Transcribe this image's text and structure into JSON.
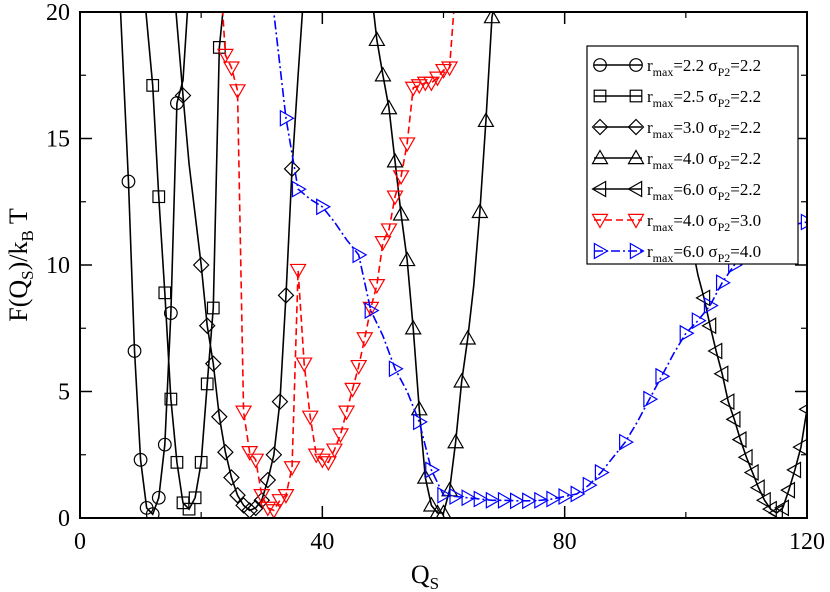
{
  "chart_data": {
    "type": "line",
    "xlabel": {
      "main": "Q",
      "sub": "S"
    },
    "ylabel": {
      "pre": "F(Q",
      "sub1": "S",
      "mid": ")/k",
      "sub2": "B",
      "post": " T"
    },
    "xlim": [
      0,
      120
    ],
    "ylim": [
      0,
      20
    ],
    "xticks": [
      0,
      40,
      80,
      120
    ],
    "yticks": [
      0,
      5,
      10,
      15,
      20
    ],
    "legend_position": "top-right",
    "grid": false,
    "series": [
      {
        "legend": {
          "r": "2.2",
          "s": "2.2"
        },
        "color": "#000000",
        "dash": "none",
        "marker": "circle",
        "x": [
          6.5,
          8,
          9,
          10,
          11,
          12,
          13,
          14,
          15,
          16,
          17,
          18
        ],
        "y": [
          21,
          13.3,
          6.6,
          2.3,
          0.4,
          0.15,
          0.8,
          2.9,
          8.1,
          16.4,
          17.3,
          21
        ],
        "markers": [
          1,
          1,
          1,
          1,
          1,
          1,
          1,
          1,
          1,
          1,
          0,
          0
        ]
      },
      {
        "legend": {
          "r": "2.5",
          "s": "2.2"
        },
        "color": "#000000",
        "dash": "none",
        "marker": "square",
        "x": [
          10.5,
          12,
          13,
          14,
          15,
          16,
          17,
          18,
          19,
          20,
          21,
          22,
          23,
          24
        ],
        "y": [
          21,
          17.1,
          12.7,
          8.9,
          4.7,
          2.2,
          0.6,
          0.35,
          0.8,
          2.2,
          5.3,
          8.3,
          18.6,
          21
        ],
        "markers": [
          0,
          1,
          1,
          1,
          1,
          1,
          1,
          1,
          1,
          1,
          1,
          1,
          1,
          0
        ]
      },
      {
        "legend": {
          "r": "3.0",
          "s": "2.2"
        },
        "color": "#000000",
        "dash": "none",
        "marker": "diamond",
        "x": [
          15.5,
          17,
          18,
          19,
          20,
          21,
          22,
          23,
          24,
          25,
          26,
          27,
          28,
          29,
          30,
          31,
          32,
          33,
          34,
          35,
          36,
          37
        ],
        "y": [
          21,
          16.7,
          14,
          12,
          10,
          7.6,
          6.1,
          4,
          2.6,
          1.6,
          0.9,
          0.5,
          0.3,
          0.4,
          0.7,
          1.5,
          2.5,
          4.6,
          8.8,
          13.8,
          17.5,
          21
        ],
        "markers": [
          0,
          1,
          0,
          0,
          1,
          1,
          1,
          1,
          1,
          1,
          1,
          1,
          1,
          1,
          1,
          1,
          1,
          1,
          1,
          1,
          0,
          0
        ]
      },
      {
        "legend": {
          "r": "4.0",
          "s": "2.2"
        },
        "color": "#000000",
        "dash": "none",
        "marker": "triangle-up",
        "x": [
          48,
          49,
          50,
          51,
          52,
          53,
          54,
          55,
          56,
          57,
          58,
          59,
          60,
          61,
          62,
          63,
          64,
          65,
          66,
          67,
          68,
          69
        ],
        "y": [
          21,
          18.9,
          17.5,
          16.2,
          14.1,
          12,
          10.2,
          7.5,
          4.3,
          1.6,
          0.5,
          0.2,
          0.2,
          1.1,
          3,
          5.4,
          7.1,
          9.2,
          12.1,
          15.7,
          19.8,
          21
        ],
        "markers": [
          0,
          1,
          1,
          1,
          1,
          1,
          1,
          1,
          1,
          1,
          1,
          1,
          1,
          1,
          1,
          1,
          1,
          0,
          1,
          1,
          1,
          0
        ]
      },
      {
        "legend": {
          "r": "6.0",
          "s": "2.2"
        },
        "color": "#000000",
        "dash": "none",
        "marker": "triangle-left",
        "x": [
          99.5,
          101,
          102,
          103,
          104,
          105,
          106,
          107,
          108,
          109,
          110,
          111,
          112,
          113,
          114,
          115,
          116,
          117,
          118,
          119,
          120
        ],
        "y": [
          11.5,
          10.8,
          9.6,
          8.7,
          7.6,
          6.6,
          5.7,
          4.6,
          3.9,
          3.1,
          2.4,
          1.8,
          1.2,
          0.7,
          0.35,
          0.2,
          0.4,
          1.1,
          1.9,
          2.8,
          4.3
        ],
        "markers": [
          0,
          0,
          0,
          1,
          1,
          1,
          1,
          1,
          1,
          1,
          1,
          1,
          1,
          1,
          1,
          1,
          1,
          1,
          1,
          1,
          1
        ]
      },
      {
        "legend": {
          "r": "4.0",
          "s": "3.0"
        },
        "color": "#ff0000",
        "dash": "7,4",
        "marker": "triangle-down",
        "x": [
          23.3,
          24,
          25,
          26,
          27,
          28,
          29,
          30,
          31,
          32,
          33,
          34,
          35,
          36,
          37,
          38,
          39,
          40,
          41,
          42,
          43,
          44,
          45,
          46,
          47,
          48,
          49,
          50,
          51,
          52,
          53,
          54,
          55,
          56,
          57,
          58,
          59,
          60,
          61,
          62
        ],
        "y": [
          21,
          18.3,
          17.8,
          16.9,
          4.2,
          2.6,
          2.3,
          0.9,
          0.4,
          0.3,
          0.7,
          0.9,
          2,
          9.8,
          6.1,
          4,
          2.5,
          2.3,
          2.2,
          2.7,
          3.3,
          4.2,
          5.1,
          6,
          7.1,
          8.3,
          9.2,
          10.9,
          11.4,
          12.7,
          13.5,
          14.8,
          17,
          17.1,
          17.2,
          17.2,
          17.4,
          17.7,
          17.8,
          21
        ],
        "markers": [
          0,
          1,
          1,
          1,
          1,
          1,
          1,
          1,
          1,
          1,
          1,
          1,
          1,
          1,
          1,
          1,
          1,
          1,
          1,
          1,
          1,
          1,
          1,
          1,
          1,
          1,
          1,
          1,
          1,
          1,
          1,
          1,
          1,
          1,
          1,
          1,
          1,
          1,
          1,
          0
        ]
      },
      {
        "legend": {
          "r": "6.0",
          "s": "4.0"
        },
        "color": "#0000ff",
        "dash": "9,3,2,3",
        "marker": "triangle-right",
        "x": [
          31.5,
          34,
          36,
          38,
          40,
          42,
          44,
          46,
          48,
          50,
          52,
          54,
          56,
          58,
          60,
          62,
          64,
          66,
          68,
          70,
          72,
          74,
          76,
          78,
          80,
          82,
          84,
          86,
          88,
          90,
          92,
          94,
          96,
          98,
          100,
          102,
          104,
          106,
          108,
          110,
          112,
          114,
          116,
          118,
          120
        ],
        "y": [
          21,
          15.8,
          13,
          12.6,
          12.3,
          11.7,
          11,
          10.4,
          8.2,
          7.2,
          5.9,
          5,
          3.8,
          1.9,
          0.9,
          0.85,
          0.8,
          0.75,
          0.7,
          0.7,
          0.68,
          0.68,
          0.7,
          0.75,
          0.85,
          0.95,
          1.3,
          1.8,
          2.4,
          3,
          3.8,
          4.7,
          5.6,
          6.5,
          7.3,
          7.8,
          8.4,
          9.3,
          10,
          10.5,
          10.9,
          11.1,
          11.4,
          11.6,
          11.7
        ],
        "markers": [
          0,
          1,
          1,
          0,
          1,
          0,
          0,
          1,
          1,
          0,
          1,
          0,
          1,
          1,
          1,
          1,
          1,
          1,
          1,
          1,
          1,
          1,
          1,
          1,
          1,
          1,
          1,
          1,
          0,
          1,
          0,
          1,
          1,
          0,
          1,
          1,
          1,
          1,
          1,
          0,
          0,
          0,
          0,
          0,
          1
        ]
      }
    ]
  }
}
